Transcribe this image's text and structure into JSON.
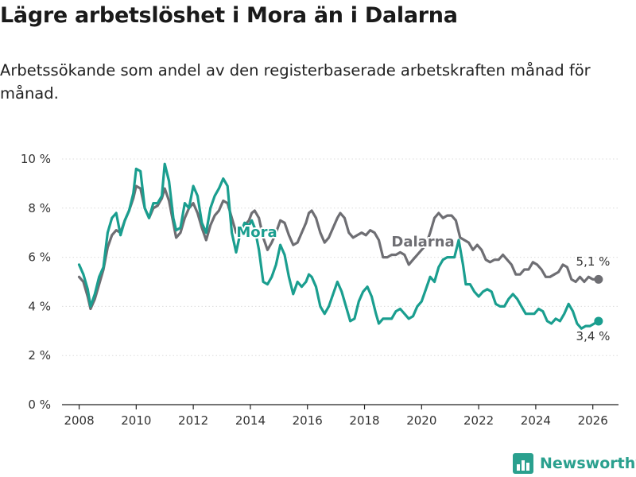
{
  "title": "Lägre arbetslöshet i Mora än i Dalarna",
  "subtitle": "Arbetssökande som andel av den registerbaserade arbetskraften månad för månad.",
  "brand": "Newsworthy",
  "colors": {
    "mora": "#1a9e8f",
    "dalarna": "#6e6e73",
    "axis": "#333333",
    "brand": "#2aa08e"
  },
  "chart_data": {
    "type": "line",
    "title": "Lägre arbetslöshet i Mora än i Dalarna",
    "xlabel": "",
    "ylabel": "",
    "xlim": [
      2007.4,
      2026.9
    ],
    "ylim": [
      0,
      10
    ],
    "x_ticks": [
      2008,
      2010,
      2012,
      2014,
      2016,
      2018,
      2020,
      2022,
      2024,
      2026
    ],
    "y_ticks": [
      {
        "value": 0,
        "label": "0 %"
      },
      {
        "value": 2,
        "label": "2 %"
      },
      {
        "value": 4,
        "label": "4 %"
      },
      {
        "value": 6,
        "label": "6 %"
      },
      {
        "value": 8,
        "label": "8 %"
      },
      {
        "value": 10,
        "label": "10 %"
      }
    ],
    "grid": true,
    "series": [
      {
        "name": "Dalarna",
        "label": "Dalarna",
        "end_label": "5,1 %",
        "points": [
          [
            2008.0,
            5.2
          ],
          [
            2008.15,
            5.0
          ],
          [
            2008.3,
            4.4
          ],
          [
            2008.4,
            3.9
          ],
          [
            2008.55,
            4.3
          ],
          [
            2008.7,
            4.9
          ],
          [
            2008.85,
            5.5
          ],
          [
            2009.0,
            6.4
          ],
          [
            2009.15,
            6.9
          ],
          [
            2009.3,
            7.1
          ],
          [
            2009.45,
            7.0
          ],
          [
            2009.6,
            7.5
          ],
          [
            2009.75,
            7.9
          ],
          [
            2009.9,
            8.4
          ],
          [
            2010.0,
            8.9
          ],
          [
            2010.15,
            8.8
          ],
          [
            2010.3,
            8.0
          ],
          [
            2010.45,
            7.6
          ],
          [
            2010.6,
            8.0
          ],
          [
            2010.75,
            8.1
          ],
          [
            2010.9,
            8.4
          ],
          [
            2011.0,
            8.8
          ],
          [
            2011.15,
            8.3
          ],
          [
            2011.3,
            7.4
          ],
          [
            2011.4,
            6.8
          ],
          [
            2011.55,
            7.0
          ],
          [
            2011.7,
            7.6
          ],
          [
            2011.85,
            8.0
          ],
          [
            2012.0,
            8.2
          ],
          [
            2012.15,
            7.8
          ],
          [
            2012.3,
            7.2
          ],
          [
            2012.45,
            6.7
          ],
          [
            2012.6,
            7.3
          ],
          [
            2012.75,
            7.7
          ],
          [
            2012.9,
            7.9
          ],
          [
            2013.05,
            8.3
          ],
          [
            2013.2,
            8.2
          ],
          [
            2013.35,
            7.6
          ],
          [
            2013.5,
            7.0
          ],
          [
            2013.65,
            7.2
          ],
          [
            2013.8,
            7.3
          ],
          [
            2013.95,
            7.5
          ],
          [
            2014.05,
            7.8
          ],
          [
            2014.15,
            7.9
          ],
          [
            2014.3,
            7.6
          ],
          [
            2014.45,
            6.8
          ],
          [
            2014.6,
            6.3
          ],
          [
            2014.75,
            6.6
          ],
          [
            2014.9,
            7.0
          ],
          [
            2015.05,
            7.5
          ],
          [
            2015.2,
            7.4
          ],
          [
            2015.35,
            6.9
          ],
          [
            2015.5,
            6.5
          ],
          [
            2015.65,
            6.6
          ],
          [
            2015.8,
            7.0
          ],
          [
            2015.95,
            7.4
          ],
          [
            2016.05,
            7.8
          ],
          [
            2016.15,
            7.9
          ],
          [
            2016.3,
            7.6
          ],
          [
            2016.45,
            7.0
          ],
          [
            2016.6,
            6.6
          ],
          [
            2016.75,
            6.8
          ],
          [
            2016.9,
            7.2
          ],
          [
            2017.05,
            7.6
          ],
          [
            2017.15,
            7.8
          ],
          [
            2017.3,
            7.6
          ],
          [
            2017.45,
            7.0
          ],
          [
            2017.6,
            6.8
          ],
          [
            2017.75,
            6.9
          ],
          [
            2017.9,
            7.0
          ],
          [
            2018.05,
            6.9
          ],
          [
            2018.2,
            7.1
          ],
          [
            2018.35,
            7.0
          ],
          [
            2018.5,
            6.7
          ],
          [
            2018.65,
            6.0
          ],
          [
            2018.8,
            6.0
          ],
          [
            2018.95,
            6.1
          ],
          [
            2019.1,
            6.1
          ],
          [
            2019.25,
            6.2
          ],
          [
            2019.4,
            6.1
          ],
          [
            2019.55,
            5.7
          ],
          [
            2019.7,
            5.9
          ],
          [
            2019.85,
            6.1
          ],
          [
            2020.0,
            6.3
          ],
          [
            2020.15,
            6.5
          ],
          [
            2020.3,
            7.0
          ],
          [
            2020.45,
            7.6
          ],
          [
            2020.6,
            7.8
          ],
          [
            2020.75,
            7.6
          ],
          [
            2020.9,
            7.7
          ],
          [
            2021.05,
            7.7
          ],
          [
            2021.2,
            7.5
          ],
          [
            2021.35,
            6.8
          ],
          [
            2021.5,
            6.7
          ],
          [
            2021.65,
            6.6
          ],
          [
            2021.8,
            6.3
          ],
          [
            2021.95,
            6.5
          ],
          [
            2022.1,
            6.3
          ],
          [
            2022.25,
            5.9
          ],
          [
            2022.4,
            5.8
          ],
          [
            2022.55,
            5.9
          ],
          [
            2022.7,
            5.9
          ],
          [
            2022.85,
            6.1
          ],
          [
            2023.0,
            5.9
          ],
          [
            2023.15,
            5.7
          ],
          [
            2023.3,
            5.3
          ],
          [
            2023.45,
            5.3
          ],
          [
            2023.6,
            5.5
          ],
          [
            2023.75,
            5.5
          ],
          [
            2023.9,
            5.8
          ],
          [
            2024.05,
            5.7
          ],
          [
            2024.2,
            5.5
          ],
          [
            2024.35,
            5.2
          ],
          [
            2024.5,
            5.2
          ],
          [
            2024.65,
            5.3
          ],
          [
            2024.8,
            5.4
          ],
          [
            2024.95,
            5.7
          ],
          [
            2025.1,
            5.6
          ],
          [
            2025.25,
            5.1
          ],
          [
            2025.4,
            5.0
          ],
          [
            2025.55,
            5.2
          ],
          [
            2025.7,
            5.0
          ],
          [
            2025.85,
            5.2
          ],
          [
            2026.0,
            5.1
          ],
          [
            2026.2,
            5.1
          ]
        ]
      },
      {
        "name": "Mora",
        "label": "Mora",
        "end_label": "3,4 %",
        "points": [
          [
            2008.0,
            5.7
          ],
          [
            2008.15,
            5.3
          ],
          [
            2008.3,
            4.7
          ],
          [
            2008.4,
            4.0
          ],
          [
            2008.55,
            4.5
          ],
          [
            2008.7,
            5.2
          ],
          [
            2008.85,
            5.6
          ],
          [
            2009.0,
            7.0
          ],
          [
            2009.15,
            7.6
          ],
          [
            2009.3,
            7.8
          ],
          [
            2009.45,
            6.9
          ],
          [
            2009.6,
            7.5
          ],
          [
            2009.75,
            7.9
          ],
          [
            2009.9,
            8.6
          ],
          [
            2010.0,
            9.6
          ],
          [
            2010.15,
            9.5
          ],
          [
            2010.3,
            8.0
          ],
          [
            2010.45,
            7.6
          ],
          [
            2010.6,
            8.2
          ],
          [
            2010.75,
            8.2
          ],
          [
            2010.9,
            8.5
          ],
          [
            2011.0,
            9.8
          ],
          [
            2011.15,
            9.1
          ],
          [
            2011.3,
            7.6
          ],
          [
            2011.4,
            7.1
          ],
          [
            2011.55,
            7.2
          ],
          [
            2011.7,
            8.2
          ],
          [
            2011.85,
            8.0
          ],
          [
            2012.0,
            8.9
          ],
          [
            2012.15,
            8.5
          ],
          [
            2012.3,
            7.4
          ],
          [
            2012.45,
            7.0
          ],
          [
            2012.6,
            8.0
          ],
          [
            2012.75,
            8.5
          ],
          [
            2012.9,
            8.8
          ],
          [
            2013.05,
            9.2
          ],
          [
            2013.2,
            8.9
          ],
          [
            2013.35,
            7.0
          ],
          [
            2013.5,
            6.2
          ],
          [
            2013.65,
            7.0
          ],
          [
            2013.8,
            7.4
          ],
          [
            2013.95,
            7.3
          ],
          [
            2014.05,
            7.5
          ],
          [
            2014.15,
            7.2
          ],
          [
            2014.3,
            6.3
          ],
          [
            2014.45,
            5.0
          ],
          [
            2014.6,
            4.9
          ],
          [
            2014.75,
            5.2
          ],
          [
            2014.9,
            5.7
          ],
          [
            2015.05,
            6.5
          ],
          [
            2015.2,
            6.1
          ],
          [
            2015.35,
            5.2
          ],
          [
            2015.5,
            4.5
          ],
          [
            2015.65,
            5.0
          ],
          [
            2015.8,
            4.8
          ],
          [
            2015.95,
            5.0
          ],
          [
            2016.05,
            5.3
          ],
          [
            2016.15,
            5.2
          ],
          [
            2016.3,
            4.8
          ],
          [
            2016.45,
            4.0
          ],
          [
            2016.6,
            3.7
          ],
          [
            2016.75,
            4.0
          ],
          [
            2016.9,
            4.5
          ],
          [
            2017.05,
            5.0
          ],
          [
            2017.2,
            4.6
          ],
          [
            2017.35,
            4.0
          ],
          [
            2017.5,
            3.4
          ],
          [
            2017.65,
            3.5
          ],
          [
            2017.8,
            4.2
          ],
          [
            2017.95,
            4.6
          ],
          [
            2018.1,
            4.8
          ],
          [
            2018.25,
            4.4
          ],
          [
            2018.4,
            3.7
          ],
          [
            2018.5,
            3.3
          ],
          [
            2018.65,
            3.5
          ],
          [
            2018.8,
            3.5
          ],
          [
            2018.95,
            3.5
          ],
          [
            2019.1,
            3.8
          ],
          [
            2019.25,
            3.9
          ],
          [
            2019.4,
            3.7
          ],
          [
            2019.55,
            3.5
          ],
          [
            2019.7,
            3.6
          ],
          [
            2019.85,
            4.0
          ],
          [
            2020.0,
            4.2
          ],
          [
            2020.15,
            4.7
          ],
          [
            2020.3,
            5.2
          ],
          [
            2020.45,
            5.0
          ],
          [
            2020.6,
            5.6
          ],
          [
            2020.75,
            5.9
          ],
          [
            2020.9,
            6.0
          ],
          [
            2021.05,
            6.0
          ],
          [
            2021.15,
            6.0
          ],
          [
            2021.3,
            6.7
          ],
          [
            2021.45,
            5.7
          ],
          [
            2021.55,
            4.9
          ],
          [
            2021.7,
            4.9
          ],
          [
            2021.85,
            4.6
          ],
          [
            2022.0,
            4.4
          ],
          [
            2022.15,
            4.6
          ],
          [
            2022.3,
            4.7
          ],
          [
            2022.45,
            4.6
          ],
          [
            2022.6,
            4.1
          ],
          [
            2022.75,
            4.0
          ],
          [
            2022.9,
            4.0
          ],
          [
            2023.05,
            4.3
          ],
          [
            2023.2,
            4.5
          ],
          [
            2023.35,
            4.3
          ],
          [
            2023.5,
            4.0
          ],
          [
            2023.65,
            3.7
          ],
          [
            2023.8,
            3.7
          ],
          [
            2023.95,
            3.7
          ],
          [
            2024.1,
            3.9
          ],
          [
            2024.25,
            3.8
          ],
          [
            2024.4,
            3.4
          ],
          [
            2024.55,
            3.3
          ],
          [
            2024.7,
            3.5
          ],
          [
            2024.85,
            3.4
          ],
          [
            2025.0,
            3.7
          ],
          [
            2025.15,
            4.1
          ],
          [
            2025.3,
            3.8
          ],
          [
            2025.45,
            3.3
          ],
          [
            2025.6,
            3.1
          ],
          [
            2025.75,
            3.2
          ],
          [
            2025.9,
            3.2
          ],
          [
            2026.05,
            3.3
          ],
          [
            2026.2,
            3.4
          ]
        ]
      }
    ]
  }
}
